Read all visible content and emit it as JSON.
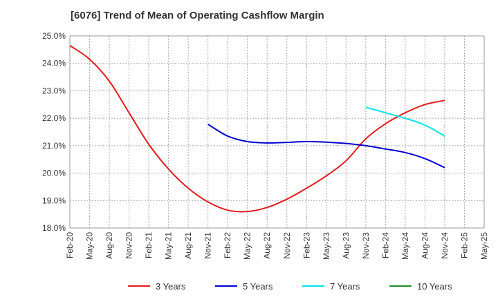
{
  "chart_data": {
    "type": "line",
    "title": "[6076]  Trend of Mean of Operating Cashflow Margin",
    "xlabel": "",
    "ylabel": "",
    "x": [
      "Feb-20",
      "May-20",
      "Aug-20",
      "Nov-20",
      "Feb-21",
      "May-21",
      "Aug-21",
      "Nov-21",
      "Feb-22",
      "May-22",
      "Aug-22",
      "Nov-22",
      "Feb-23",
      "May-23",
      "Aug-23",
      "Nov-23",
      "Feb-24",
      "May-24",
      "Aug-24",
      "Nov-24",
      "Feb-25",
      "May-25"
    ],
    "ylim": [
      18.0,
      25.0
    ],
    "yticks": [
      "18.0%",
      "19.0%",
      "20.0%",
      "21.0%",
      "22.0%",
      "23.0%",
      "24.0%",
      "25.0%"
    ],
    "grid": true,
    "legend_position": "bottom",
    "series": [
      {
        "name": "3 Years",
        "color": "#e31a1c",
        "values": [
          24.65,
          24.15,
          23.35,
          22.2,
          21.05,
          20.15,
          19.45,
          18.95,
          18.65,
          18.6,
          18.75,
          19.05,
          19.45,
          19.9,
          20.45,
          21.25,
          21.8,
          22.2,
          22.5,
          22.65,
          null,
          null
        ]
      },
      {
        "name": "5 Years",
        "color": "#0000cc",
        "values": [
          null,
          null,
          null,
          null,
          null,
          null,
          null,
          21.78,
          21.35,
          21.15,
          21.1,
          21.12,
          21.15,
          21.13,
          21.08,
          21.0,
          20.88,
          20.75,
          20.53,
          20.2,
          null,
          null
        ]
      },
      {
        "name": "7 Years",
        "color": "#00e5ee",
        "values": [
          null,
          null,
          null,
          null,
          null,
          null,
          null,
          null,
          null,
          null,
          null,
          null,
          null,
          null,
          null,
          22.4,
          22.2,
          22.0,
          21.75,
          21.35,
          null,
          null
        ]
      },
      {
        "name": "10 Years",
        "color": "#228b22",
        "values": [
          null,
          null,
          null,
          null,
          null,
          null,
          null,
          null,
          null,
          null,
          null,
          null,
          null,
          null,
          null,
          null,
          null,
          null,
          null,
          null,
          null,
          null
        ]
      }
    ]
  }
}
